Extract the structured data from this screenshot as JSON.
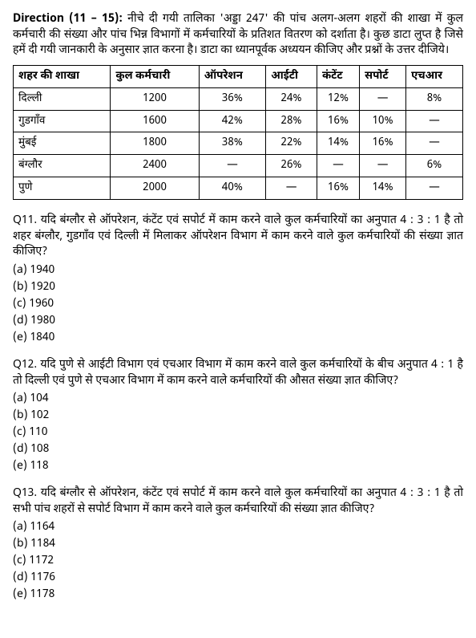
{
  "direction": {
    "label": "Direction (11 – 15):",
    "text": "नीचे दी गयी तालिका 'अड्डा 247' की पांच अलग-अलग शहरों की शाखा में कुल कर्मचारी की संख्या और पांच भिन्न विभागों में कर्मचारियों के प्रतिशत वितरण को दर्शाता है। कुछ डाटा लुप्त है जिसे हमें दी गयी जानकारी के अनुसार ज्ञात करना है। डाटा का ध्यानपूर्वक अध्ययन कीजिए और प्रश्नों के उत्तर दीजिये।"
  },
  "table": {
    "columns": [
      "शहर की शाखा",
      "कुल कर्मचारी",
      "ऑपरेशन",
      "आईटी",
      "कंटेंट",
      "सपोर्ट",
      "एचआर"
    ],
    "rows": [
      [
        "दिल्ली",
        "1200",
        "36%",
        "24%",
        "12%",
        "—",
        "8%"
      ],
      [
        "गुडगाँव",
        "1600",
        "42%",
        "28%",
        "16%",
        "10%",
        "—"
      ],
      [
        "मुंबई",
        "1800",
        "38%",
        "22%",
        "14%",
        "16%",
        "—"
      ],
      [
        "बंग्लौर",
        "2400",
        "—",
        "26%",
        "—",
        "—",
        "6%"
      ],
      [
        "पुणे",
        "2000",
        "40%",
        "—",
        "16%",
        "14%",
        "—"
      ]
    ]
  },
  "questions": [
    {
      "number": "Q11.",
      "text": "यदि बंग्लौर से ऑपरेशन, कंटेंट एवं सपोर्ट में काम करने वाले कुल कर्मचारियों का अनुपात 4 : 3 : 1 है तो शहर बंग्लौर, गुडगाँव एवं दिल्ली में मिलाकर ऑपरेशन विभाग में काम करने वाले कुल कर्मचारियों की संख्या ज्ञात कीजिए?",
      "options": [
        "(a) 1940",
        "(b) 1920",
        "(c) 1960",
        "(d) 1980",
        "(e) 1840"
      ]
    },
    {
      "number": "Q12.",
      "text": "यदि पुणे से आईटी विभाग एवं एचआर विभाग में काम करने वाले कुल कर्मचारियों के बीच अनुपात 4 : 1 है तो दिल्ली एवं पुणे से एचआर विभाग में काम करने वाले कर्मचारियों की औसत संख्या ज्ञात कीजिए?",
      "options": [
        "(a) 104",
        "(b) 102",
        "(c) 110",
        "(d) 108",
        "(e) 118"
      ]
    },
    {
      "number": "Q13.",
      "text": "यदि बंग्लौर से ऑपरेशन, कंटेंट एवं सपोर्ट में काम करने वाले कुल कर्मचारियों का अनुपात 4 : 3 : 1 है तो सभी पांच शहरों से सपोर्ट विभाग में काम करने वाले कुल कर्मचारियों की संख्या ज्ञात कीजिए?",
      "options": [
        "(a) 1164",
        "(b) 1184",
        "(c) 1172",
        "(d) 1176",
        "(e) 1178"
      ]
    }
  ]
}
